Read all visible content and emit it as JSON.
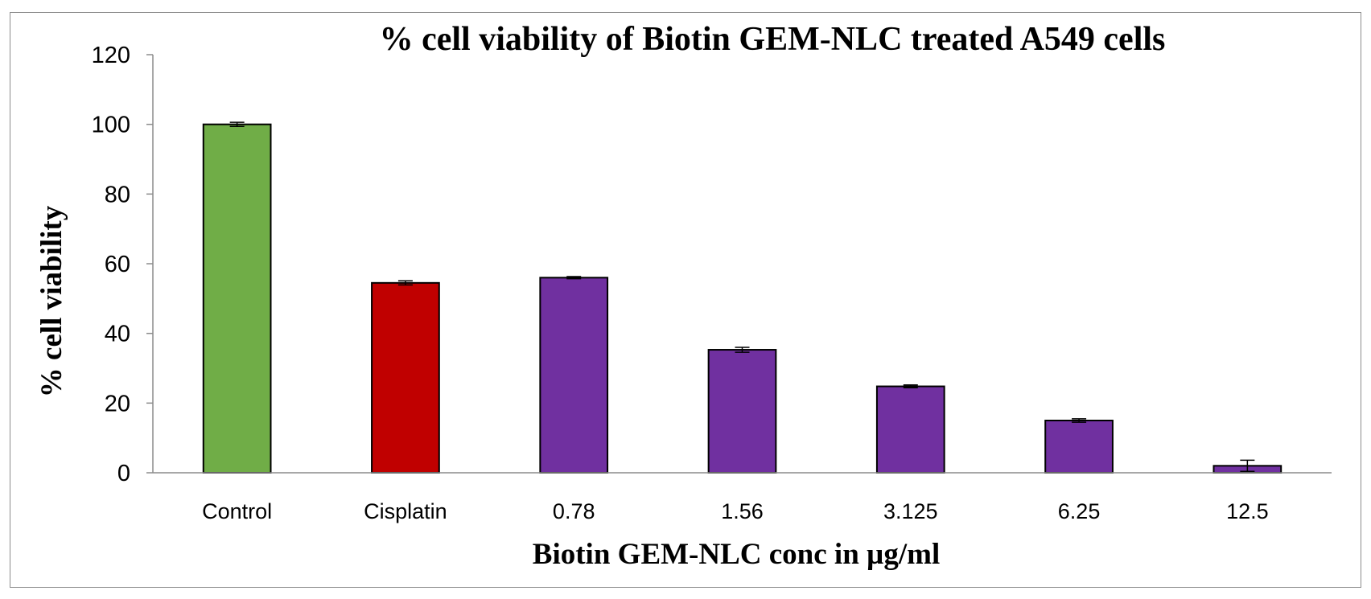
{
  "chart_data": {
    "type": "bar",
    "title": "% cell viability of Biotin GEM-NLC treated A549 cells",
    "xlabel": "Biotin GEM-NLC conc in µg/ml",
    "ylabel": "% cell viability",
    "categories": [
      "Control",
      "Cisplatin",
      "0.78",
      "1.56",
      "3.125",
      "6.25",
      "12.5"
    ],
    "values": [
      100,
      54.5,
      56,
      35.3,
      24.8,
      15,
      2
    ],
    "errors": [
      0.6,
      0.6,
      0.3,
      0.7,
      0.4,
      0.5,
      1.6
    ],
    "colors": [
      "#70AD47",
      "#C00000",
      "#7030A0",
      "#7030A0",
      "#7030A0",
      "#7030A0",
      "#7030A0"
    ],
    "ylim": [
      0,
      120
    ],
    "yticks": [
      0,
      20,
      40,
      60,
      80,
      100,
      120
    ],
    "grid": false,
    "legend": "none"
  }
}
